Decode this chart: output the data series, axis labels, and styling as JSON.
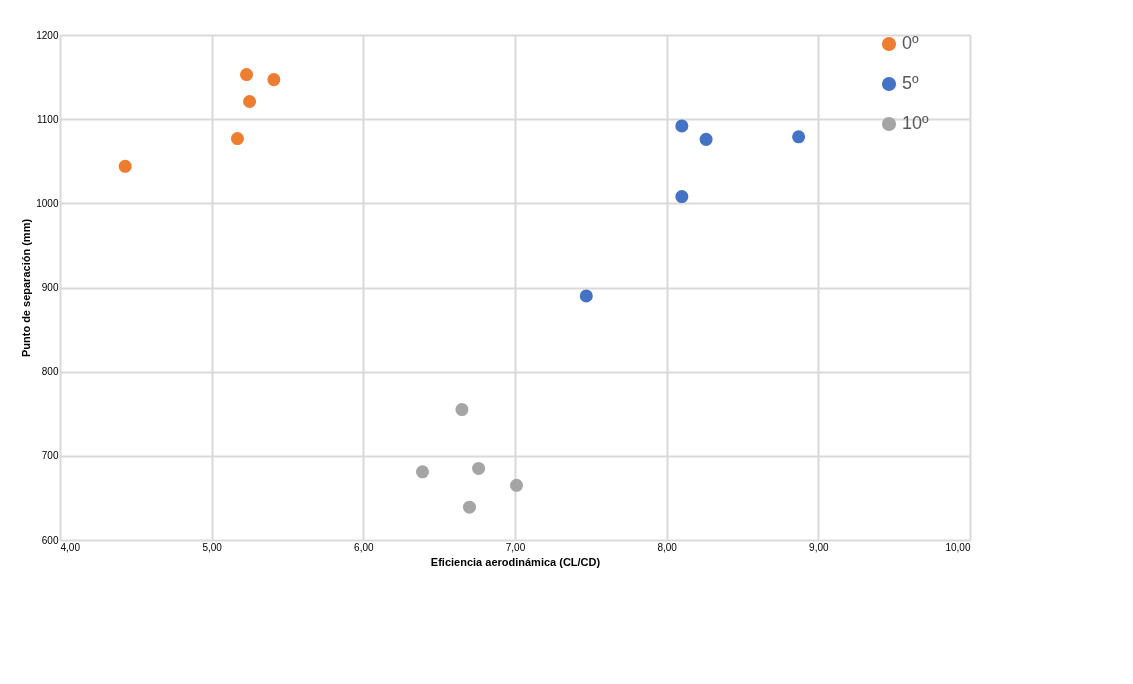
{
  "chart_data": {
    "type": "scatter",
    "xlabel": "Eficiencia aerodinámica (CL/CD)",
    "ylabel": "Punto de separación (mm)",
    "series": [
      {
        "name": "0º",
        "color": "#ed7d31",
        "x": [
          4.43,
          5.23,
          5.41,
          5.25,
          5.17
        ],
        "values": [
          1044,
          1153,
          1147,
          1121,
          1077
        ]
      },
      {
        "name": "5º",
        "color": "#4472c4",
        "x": [
          8.1,
          8.26,
          8.87,
          8.1,
          7.47
        ],
        "values": [
          1092,
          1076,
          1079,
          1008,
          890
        ]
      },
      {
        "name": "10º",
        "color": "#a5a5a5",
        "x": [
          6.65,
          6.39,
          6.76,
          7.01,
          6.7
        ],
        "values": [
          755,
          681,
          685,
          665,
          639
        ]
      }
    ],
    "xlim": [
      4,
      10
    ],
    "xticks": [
      {
        "value": 4,
        "label": "4,00"
      },
      {
        "value": 5,
        "label": "5,00"
      },
      {
        "value": 6,
        "label": "6,00"
      },
      {
        "value": 7,
        "label": "7,00"
      },
      {
        "value": 8,
        "label": "8,00"
      },
      {
        "value": 9,
        "label": "9,00"
      },
      {
        "value": 10,
        "label": "10,00"
      }
    ],
    "ylim": [
      600,
      1200
    ],
    "yticks": [
      600,
      700,
      800,
      900,
      1000,
      1100,
      1200
    ],
    "grid": true,
    "legend": "right",
    "marker": "circle"
  }
}
